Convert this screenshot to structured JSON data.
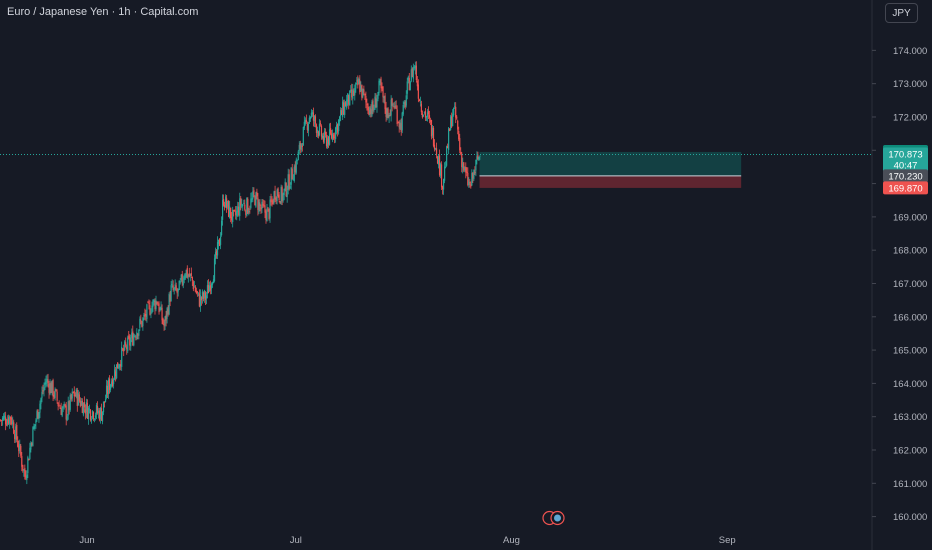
{
  "header": {
    "title": "Euro / Japanese Yen · 1h · Capital.com",
    "currency_button": "JPY"
  },
  "colors": {
    "background": "#161a25",
    "up": "#26a69a",
    "down": "#ef5350",
    "target": "#0d8a7a",
    "stop": "#b8323d",
    "label_gray": "#4a4e58"
  },
  "chart_data": {
    "type": "candlestick",
    "title": "Euro / Japanese Yen · 1h · Capital.com",
    "y_ticks": [
      "174.000",
      "173.000",
      "172.000",
      "171.000",
      "170.000",
      "169.000",
      "168.000",
      "167.000",
      "166.000",
      "165.000",
      "164.000",
      "163.000",
      "162.000",
      "161.000",
      "160.000"
    ],
    "ylim": [
      159.88,
      175.05
    ],
    "x_ticks": [
      {
        "label": "Jun",
        "day": 0
      },
      {
        "label": "Jul",
        "day": 30
      },
      {
        "label": "Aug",
        "day": 61
      },
      {
        "label": "Sep",
        "day": 92
      }
    ],
    "xlim_days": [
      -12.5,
      112.8
    ],
    "close_path": [
      [
        -12.5,
        162.9
      ],
      [
        -11,
        163.0
      ],
      [
        -10,
        162.2
      ],
      [
        -9,
        161.2
      ],
      [
        -8,
        162.4
      ],
      [
        -7,
        163.3
      ],
      [
        -6,
        164.1
      ],
      [
        -5,
        163.8
      ],
      [
        -4,
        163.3
      ],
      [
        -3,
        163.1
      ],
      [
        -2,
        163.7
      ],
      [
        0,
        163.2
      ],
      [
        2,
        163.1
      ],
      [
        3,
        163.9
      ],
      [
        4,
        164.4
      ],
      [
        5,
        164.9
      ],
      [
        6,
        165.2
      ],
      [
        7,
        165.6
      ],
      [
        8,
        165.9
      ],
      [
        9,
        166.3
      ],
      [
        10,
        166.5
      ],
      [
        11,
        165.7
      ],
      [
        12,
        166.8
      ],
      [
        13,
        166.7
      ],
      [
        14,
        167.4
      ],
      [
        15,
        167.1
      ],
      [
        16,
        166.5
      ],
      [
        17,
        166.6
      ],
      [
        18,
        167.3
      ],
      [
        19,
        168.3
      ],
      [
        19.5,
        169.6
      ],
      [
        20,
        169.3
      ],
      [
        21,
        168.9
      ],
      [
        22,
        169.4
      ],
      [
        23,
        169.3
      ],
      [
        24,
        169.6
      ],
      [
        25,
        169.2
      ],
      [
        26,
        169.1
      ],
      [
        27,
        169.8
      ],
      [
        28,
        169.6
      ],
      [
        29,
        170.1
      ],
      [
        30,
        170.6
      ],
      [
        31,
        171.5
      ],
      [
        32,
        172.1
      ],
      [
        33,
        171.7
      ],
      [
        34,
        171.3
      ],
      [
        35,
        171.4
      ],
      [
        36,
        171.8
      ],
      [
        37,
        172.4
      ],
      [
        38,
        172.6
      ],
      [
        39,
        173.0
      ],
      [
        40,
        172.4
      ],
      [
        41,
        172.2
      ],
      [
        42,
        172.9
      ],
      [
        43,
        172.1
      ],
      [
        44,
        172.4
      ],
      [
        45,
        171.7
      ],
      [
        46,
        172.9
      ],
      [
        47,
        173.6
      ],
      [
        47.5,
        172.8
      ],
      [
        48,
        172.3
      ],
      [
        49,
        171.9
      ],
      [
        50,
        171.2
      ],
      [
        50.5,
        170.6
      ],
      [
        51,
        170.0
      ],
      [
        51.5,
        170.7
      ],
      [
        52,
        171.6
      ],
      [
        52.5,
        172.2
      ],
      [
        53,
        171.9
      ],
      [
        53.5,
        171.0
      ],
      [
        54,
        170.5
      ],
      [
        54.5,
        170.1
      ],
      [
        55,
        169.9
      ],
      [
        55.5,
        170.3
      ],
      [
        56,
        170.7
      ],
      [
        56.4,
        170.87
      ]
    ],
    "current_price": "170.873",
    "countdown": "40:47",
    "position": {
      "start_day": 56.4,
      "end_day": 94.0,
      "take_profit": "170.950",
      "entry": "170.230",
      "stop_loss": "169.870"
    }
  }
}
